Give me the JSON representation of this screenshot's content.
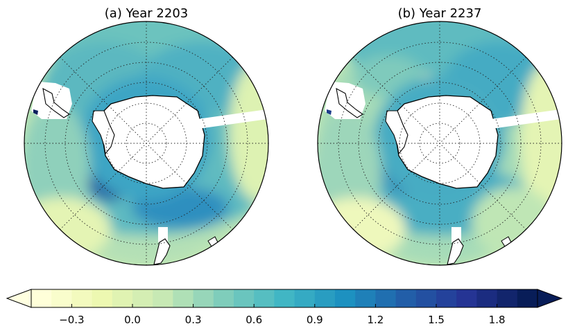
{
  "panels": [
    {
      "title": "(a) Year 2203"
    },
    {
      "title": "(b) Year 2237"
    }
  ],
  "colorbar": {
    "colormap": "YlGnBu",
    "vmin": -0.5,
    "vmax": 2.0,
    "step": 0.1,
    "extend": "both",
    "ticks": [
      {
        "value": -0.3,
        "label": "−0.3"
      },
      {
        "value": 0.0,
        "label": "0.0"
      },
      {
        "value": 0.3,
        "label": "0.3"
      },
      {
        "value": 0.6,
        "label": "0.6"
      },
      {
        "value": 0.9,
        "label": "0.9"
      },
      {
        "value": 1.2,
        "label": "1.2"
      },
      {
        "value": 1.5,
        "label": "1.5"
      },
      {
        "value": 1.8,
        "label": "1.8"
      }
    ]
  },
  "colors": {
    "under": "#ffffe0",
    "over": "#081d58",
    "land": "#ffffff",
    "coast": "#000000"
  }
}
